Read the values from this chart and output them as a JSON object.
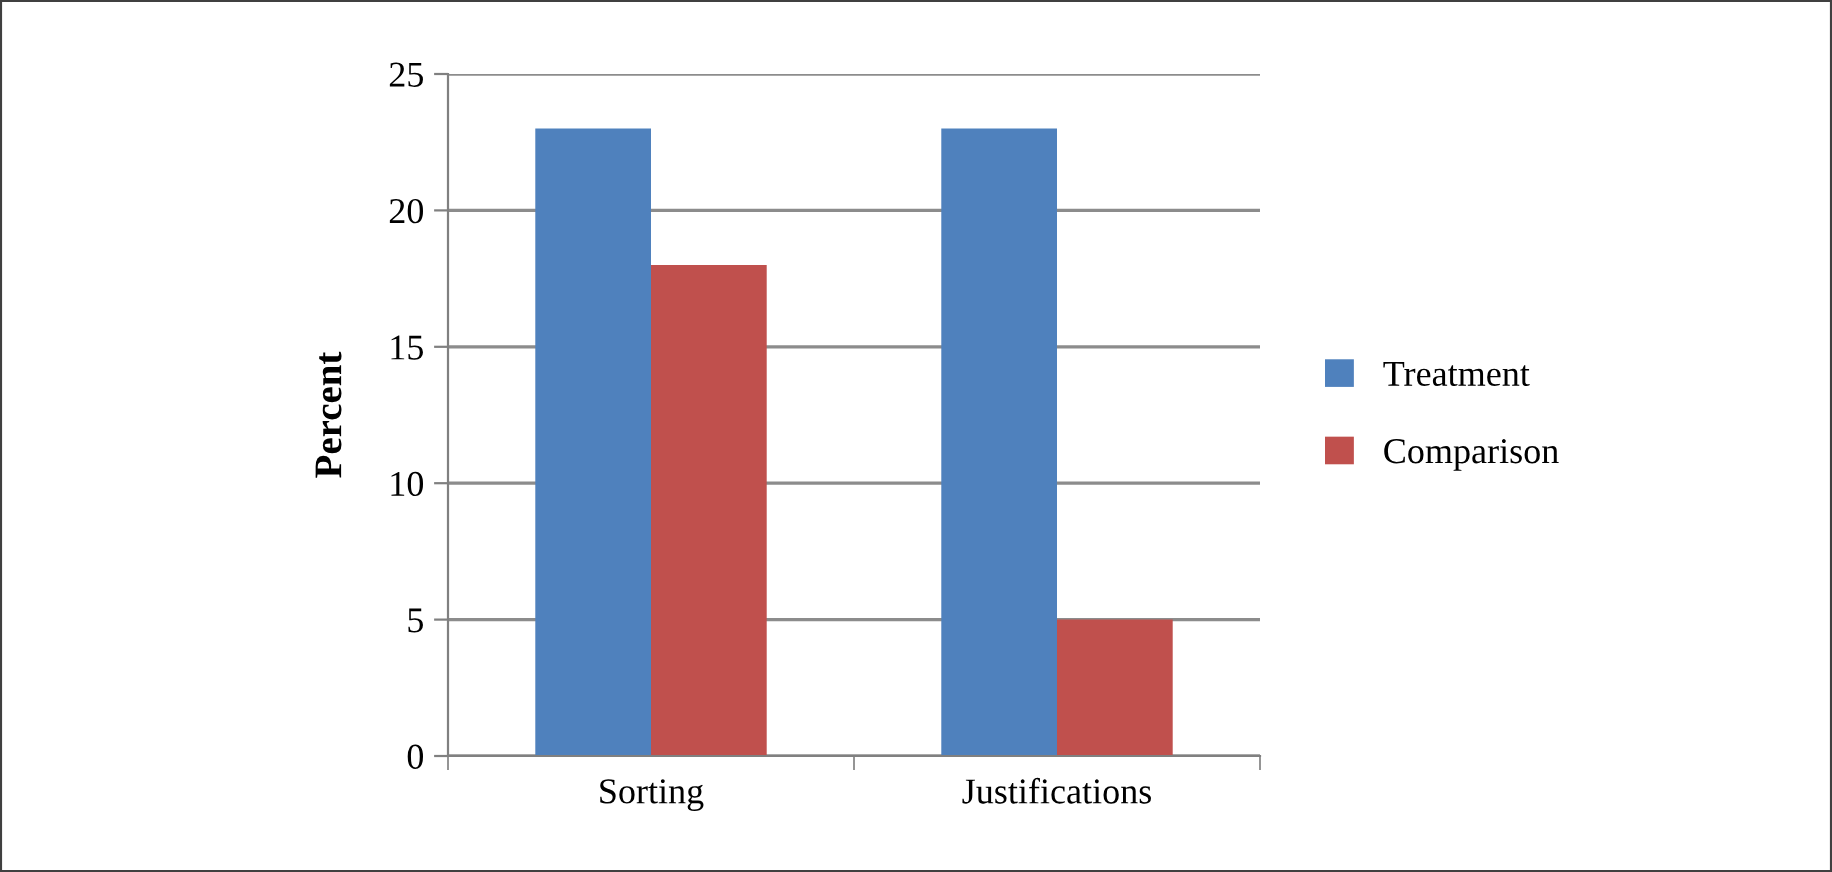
{
  "chart_data": {
    "type": "bar",
    "ylabel": "Percent",
    "categories": [
      "Sorting",
      "Justifications"
    ],
    "series": [
      {
        "name": "Treatment",
        "color": "#4f81bd",
        "values": [
          23,
          23
        ]
      },
      {
        "name": "Comparison",
        "color": "#c0504d",
        "values": [
          18,
          5
        ]
      }
    ],
    "ylim": [
      0,
      25
    ],
    "yticks": [
      0,
      5,
      10,
      15,
      20,
      25
    ],
    "grid": "y",
    "legend": "right"
  }
}
